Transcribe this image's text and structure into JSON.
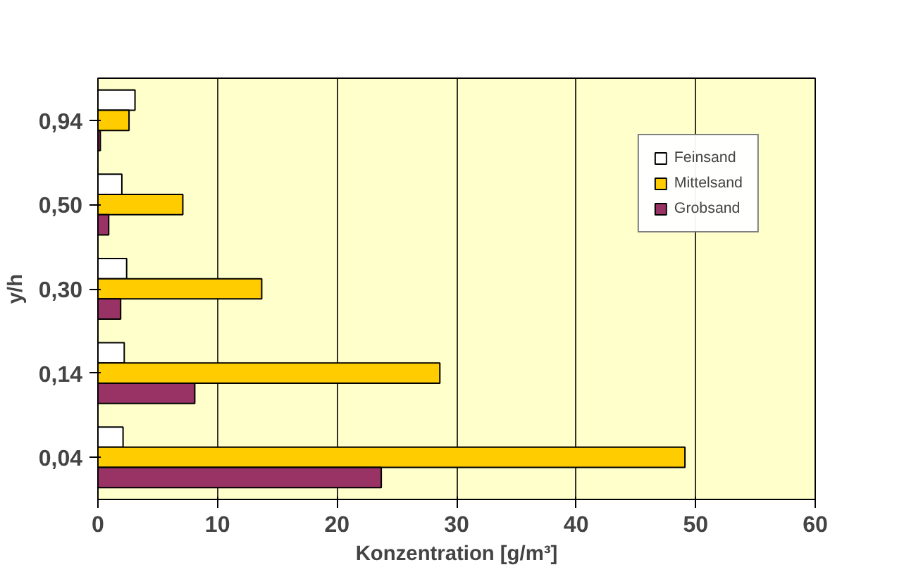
{
  "chart_data": {
    "type": "bar",
    "orientation": "horizontal",
    "xlabel": "Konzentration [g/m³]",
    "ylabel": "y/h",
    "categories": [
      "0,94",
      "0,50",
      "0,30",
      "0,14",
      "0,04"
    ],
    "series": [
      {
        "name": "Feinsand",
        "color": "#ffffff",
        "values": [
          3.1,
          2.0,
          2.4,
          2.2,
          2.1
        ]
      },
      {
        "name": "Mittelsand",
        "color": "#ffcc00",
        "values": [
          2.6,
          7.1,
          13.7,
          28.6,
          49.1
        ]
      },
      {
        "name": "Grobsand",
        "color": "#993366",
        "values": [
          0.2,
          0.9,
          1.9,
          8.1,
          23.7
        ]
      }
    ],
    "xlim": [
      0,
      60
    ],
    "xticks": [
      0,
      10,
      20,
      30,
      40,
      50,
      60
    ],
    "grid": "x",
    "legend": "top right"
  }
}
